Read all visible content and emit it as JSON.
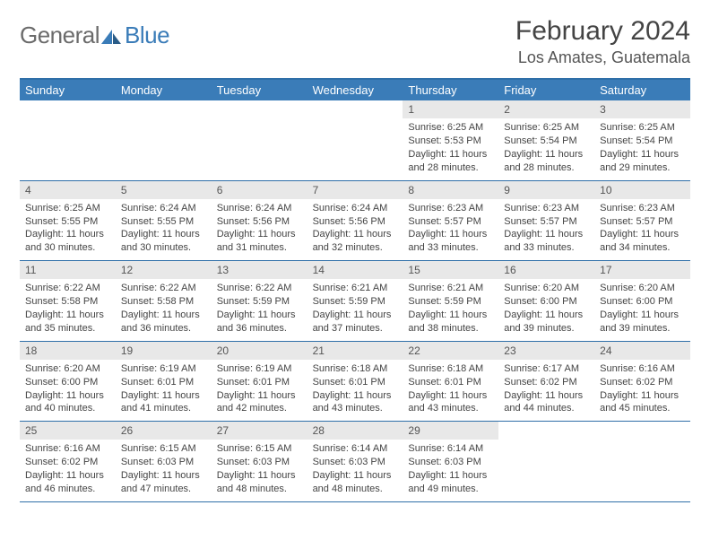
{
  "logo": {
    "text1": "General",
    "text2": "Blue"
  },
  "title": "February 2024",
  "location": "Los Amates, Guatemala",
  "colors": {
    "header_bg": "#3a7cb8",
    "header_border": "#2f6fa8",
    "daynum_bg": "#e8e8e8",
    "text": "#444444"
  },
  "day_names": [
    "Sunday",
    "Monday",
    "Tuesday",
    "Wednesday",
    "Thursday",
    "Friday",
    "Saturday"
  ],
  "weeks": [
    [
      {
        "n": "",
        "sr": "",
        "ss": "",
        "dl": ""
      },
      {
        "n": "",
        "sr": "",
        "ss": "",
        "dl": ""
      },
      {
        "n": "",
        "sr": "",
        "ss": "",
        "dl": ""
      },
      {
        "n": "",
        "sr": "",
        "ss": "",
        "dl": ""
      },
      {
        "n": "1",
        "sr": "Sunrise: 6:25 AM",
        "ss": "Sunset: 5:53 PM",
        "dl": "Daylight: 11 hours and 28 minutes."
      },
      {
        "n": "2",
        "sr": "Sunrise: 6:25 AM",
        "ss": "Sunset: 5:54 PM",
        "dl": "Daylight: 11 hours and 28 minutes."
      },
      {
        "n": "3",
        "sr": "Sunrise: 6:25 AM",
        "ss": "Sunset: 5:54 PM",
        "dl": "Daylight: 11 hours and 29 minutes."
      }
    ],
    [
      {
        "n": "4",
        "sr": "Sunrise: 6:25 AM",
        "ss": "Sunset: 5:55 PM",
        "dl": "Daylight: 11 hours and 30 minutes."
      },
      {
        "n": "5",
        "sr": "Sunrise: 6:24 AM",
        "ss": "Sunset: 5:55 PM",
        "dl": "Daylight: 11 hours and 30 minutes."
      },
      {
        "n": "6",
        "sr": "Sunrise: 6:24 AM",
        "ss": "Sunset: 5:56 PM",
        "dl": "Daylight: 11 hours and 31 minutes."
      },
      {
        "n": "7",
        "sr": "Sunrise: 6:24 AM",
        "ss": "Sunset: 5:56 PM",
        "dl": "Daylight: 11 hours and 32 minutes."
      },
      {
        "n": "8",
        "sr": "Sunrise: 6:23 AM",
        "ss": "Sunset: 5:57 PM",
        "dl": "Daylight: 11 hours and 33 minutes."
      },
      {
        "n": "9",
        "sr": "Sunrise: 6:23 AM",
        "ss": "Sunset: 5:57 PM",
        "dl": "Daylight: 11 hours and 33 minutes."
      },
      {
        "n": "10",
        "sr": "Sunrise: 6:23 AM",
        "ss": "Sunset: 5:57 PM",
        "dl": "Daylight: 11 hours and 34 minutes."
      }
    ],
    [
      {
        "n": "11",
        "sr": "Sunrise: 6:22 AM",
        "ss": "Sunset: 5:58 PM",
        "dl": "Daylight: 11 hours and 35 minutes."
      },
      {
        "n": "12",
        "sr": "Sunrise: 6:22 AM",
        "ss": "Sunset: 5:58 PM",
        "dl": "Daylight: 11 hours and 36 minutes."
      },
      {
        "n": "13",
        "sr": "Sunrise: 6:22 AM",
        "ss": "Sunset: 5:59 PM",
        "dl": "Daylight: 11 hours and 36 minutes."
      },
      {
        "n": "14",
        "sr": "Sunrise: 6:21 AM",
        "ss": "Sunset: 5:59 PM",
        "dl": "Daylight: 11 hours and 37 minutes."
      },
      {
        "n": "15",
        "sr": "Sunrise: 6:21 AM",
        "ss": "Sunset: 5:59 PM",
        "dl": "Daylight: 11 hours and 38 minutes."
      },
      {
        "n": "16",
        "sr": "Sunrise: 6:20 AM",
        "ss": "Sunset: 6:00 PM",
        "dl": "Daylight: 11 hours and 39 minutes."
      },
      {
        "n": "17",
        "sr": "Sunrise: 6:20 AM",
        "ss": "Sunset: 6:00 PM",
        "dl": "Daylight: 11 hours and 39 minutes."
      }
    ],
    [
      {
        "n": "18",
        "sr": "Sunrise: 6:20 AM",
        "ss": "Sunset: 6:00 PM",
        "dl": "Daylight: 11 hours and 40 minutes."
      },
      {
        "n": "19",
        "sr": "Sunrise: 6:19 AM",
        "ss": "Sunset: 6:01 PM",
        "dl": "Daylight: 11 hours and 41 minutes."
      },
      {
        "n": "20",
        "sr": "Sunrise: 6:19 AM",
        "ss": "Sunset: 6:01 PM",
        "dl": "Daylight: 11 hours and 42 minutes."
      },
      {
        "n": "21",
        "sr": "Sunrise: 6:18 AM",
        "ss": "Sunset: 6:01 PM",
        "dl": "Daylight: 11 hours and 43 minutes."
      },
      {
        "n": "22",
        "sr": "Sunrise: 6:18 AM",
        "ss": "Sunset: 6:01 PM",
        "dl": "Daylight: 11 hours and 43 minutes."
      },
      {
        "n": "23",
        "sr": "Sunrise: 6:17 AM",
        "ss": "Sunset: 6:02 PM",
        "dl": "Daylight: 11 hours and 44 minutes."
      },
      {
        "n": "24",
        "sr": "Sunrise: 6:16 AM",
        "ss": "Sunset: 6:02 PM",
        "dl": "Daylight: 11 hours and 45 minutes."
      }
    ],
    [
      {
        "n": "25",
        "sr": "Sunrise: 6:16 AM",
        "ss": "Sunset: 6:02 PM",
        "dl": "Daylight: 11 hours and 46 minutes."
      },
      {
        "n": "26",
        "sr": "Sunrise: 6:15 AM",
        "ss": "Sunset: 6:03 PM",
        "dl": "Daylight: 11 hours and 47 minutes."
      },
      {
        "n": "27",
        "sr": "Sunrise: 6:15 AM",
        "ss": "Sunset: 6:03 PM",
        "dl": "Daylight: 11 hours and 48 minutes."
      },
      {
        "n": "28",
        "sr": "Sunrise: 6:14 AM",
        "ss": "Sunset: 6:03 PM",
        "dl": "Daylight: 11 hours and 48 minutes."
      },
      {
        "n": "29",
        "sr": "Sunrise: 6:14 AM",
        "ss": "Sunset: 6:03 PM",
        "dl": "Daylight: 11 hours and 49 minutes."
      },
      {
        "n": "",
        "sr": "",
        "ss": "",
        "dl": ""
      },
      {
        "n": "",
        "sr": "",
        "ss": "",
        "dl": ""
      }
    ]
  ]
}
